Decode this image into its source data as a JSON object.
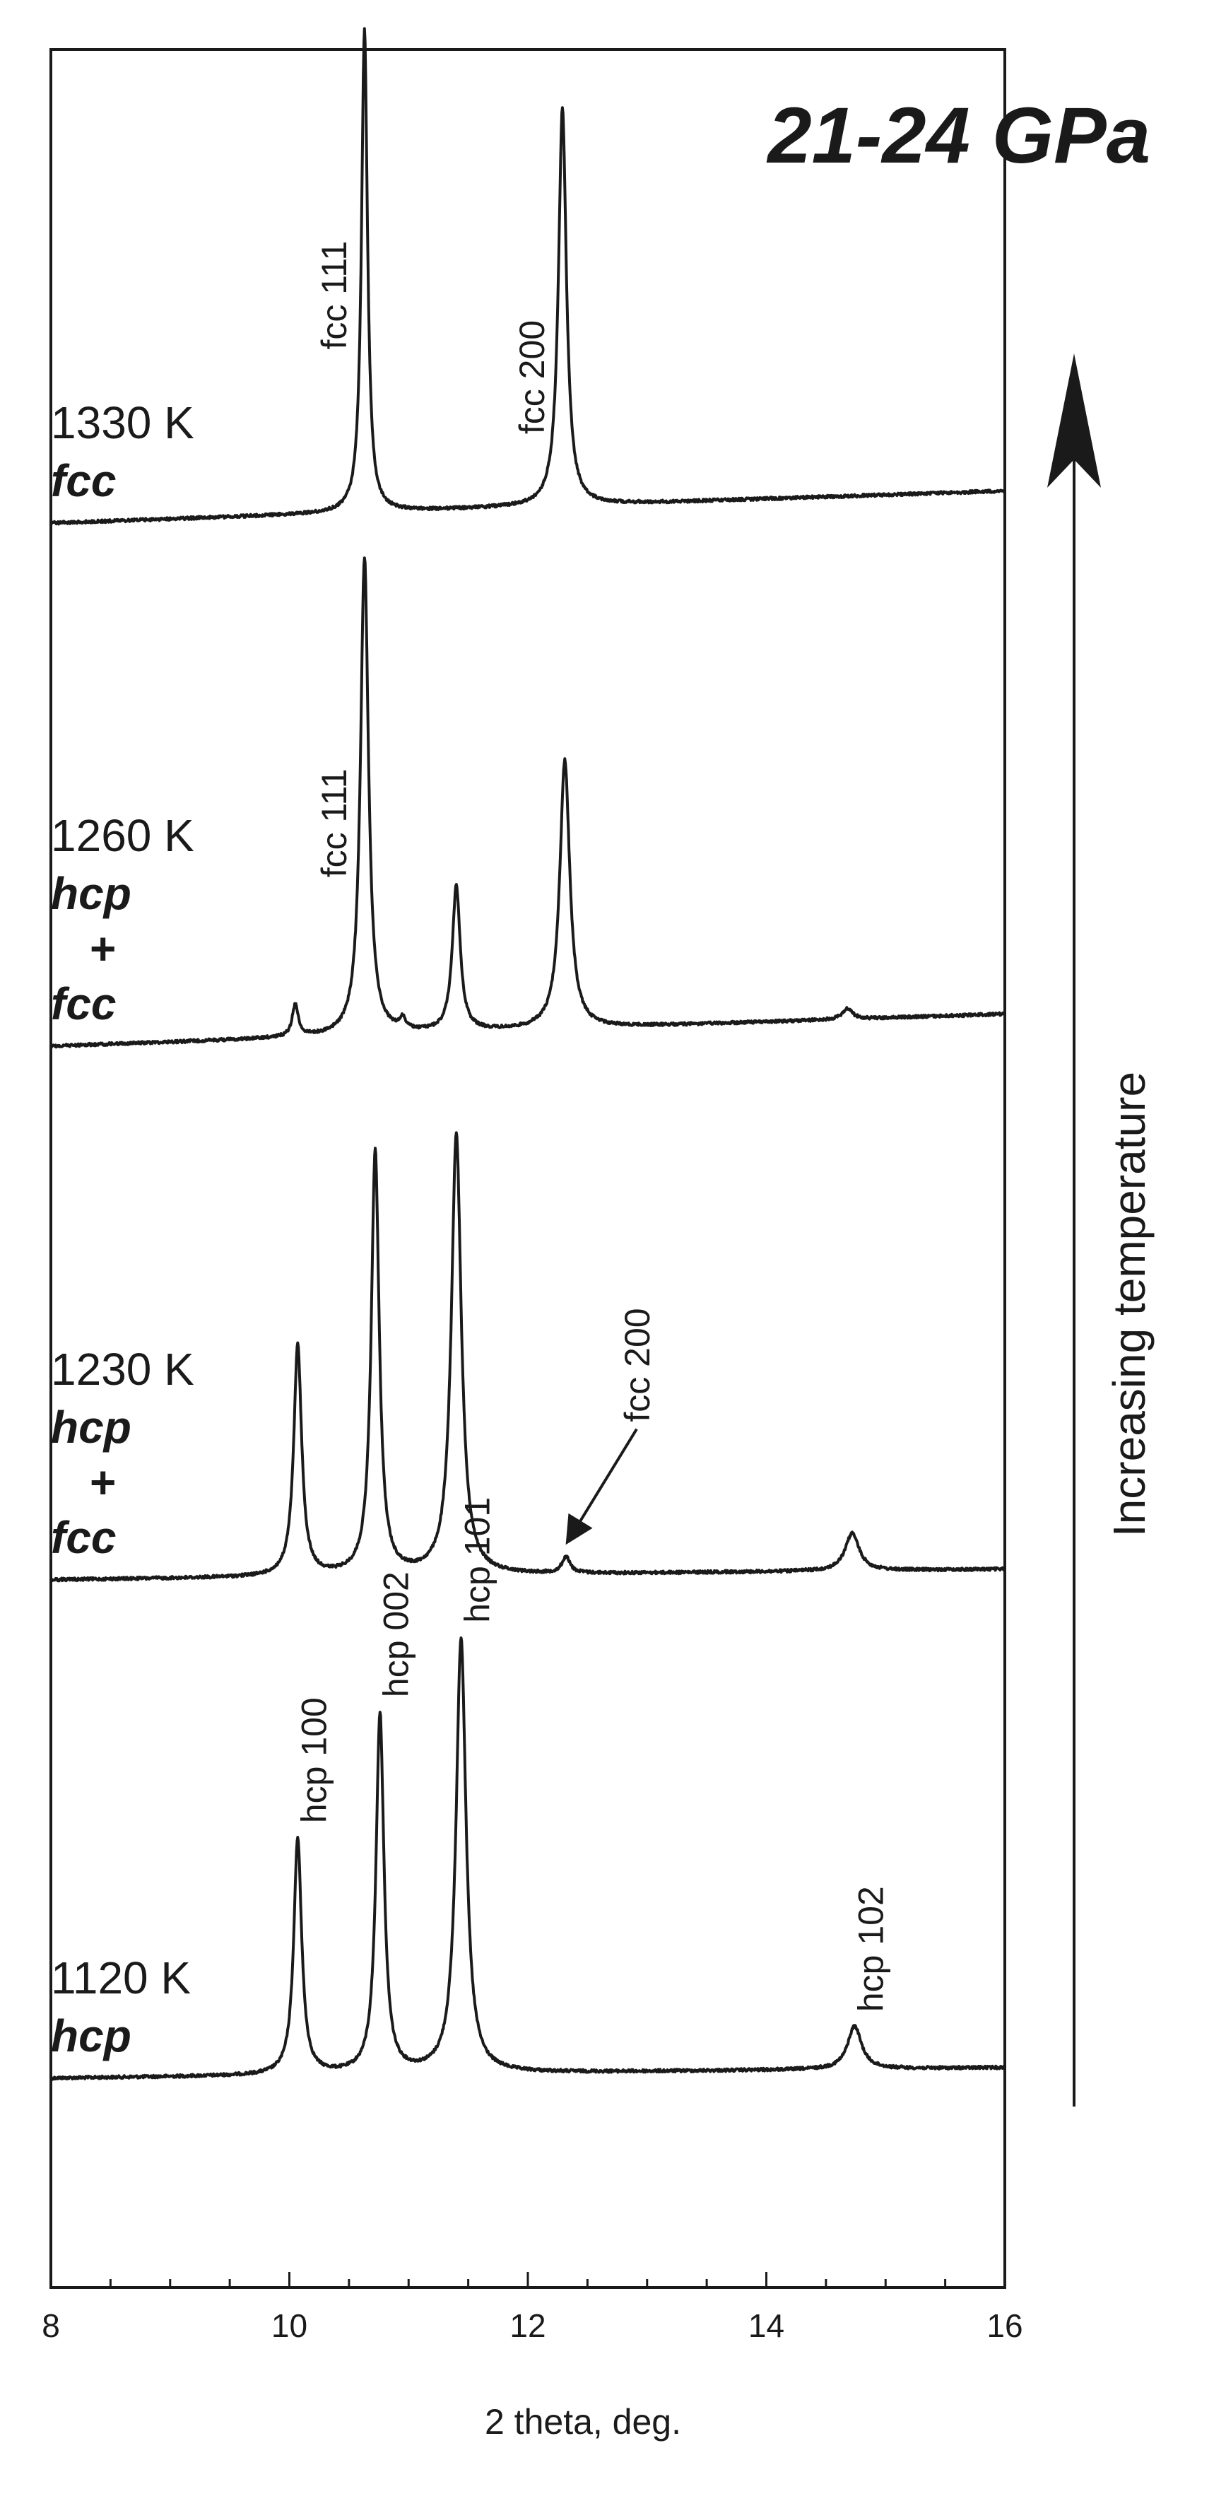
{
  "chart_data": {
    "type": "line",
    "title": "21-24 GPa",
    "xlabel": "2 theta, deg.",
    "ylabel": "",
    "xlim": [
      8,
      16
    ],
    "xticks": [
      8,
      10,
      12,
      14,
      16
    ],
    "grid": false,
    "trend_annotation": "Increasing temperature",
    "series": [
      {
        "temperature": "1120 K",
        "phase_lines": [
          "hcp"
        ],
        "baseline_left": 0.0,
        "baseline_right": 0.02,
        "peaks": [
          {
            "x": 10.07,
            "height": 0.44,
            "width": 0.04
          },
          {
            "x": 10.76,
            "height": 0.67,
            "width": 0.04
          },
          {
            "x": 11.44,
            "height": 0.81,
            "width": 0.05
          },
          {
            "x": 14.74,
            "height": 0.08,
            "width": 0.07
          }
        ],
        "peak_labels": [
          {
            "text": "hcp 100",
            "x": 10.07
          },
          {
            "text": "hcp 002",
            "x": 10.76
          },
          {
            "text": "hcp 101",
            "x": 11.44
          },
          {
            "text": "hcp 102",
            "x": 14.74
          }
        ]
      },
      {
        "temperature": "1230 K",
        "phase_lines": [
          "hcp",
          "+",
          "fcc"
        ],
        "baseline_left": 0.0,
        "baseline_right": 0.02,
        "peaks": [
          {
            "x": 10.07,
            "height": 0.43,
            "width": 0.04
          },
          {
            "x": 10.72,
            "height": 0.79,
            "width": 0.04
          },
          {
            "x": 11.4,
            "height": 0.82,
            "width": 0.05
          },
          {
            "x": 12.32,
            "height": 0.03,
            "width": 0.04
          },
          {
            "x": 14.72,
            "height": 0.07,
            "width": 0.07
          }
        ],
        "peak_labels": [
          {
            "text": "fcc 200",
            "x": 12.32,
            "arrow": true
          }
        ]
      },
      {
        "temperature": "1260 K",
        "phase_lines": [
          "hcp",
          "+",
          "fcc"
        ],
        "baseline_left": 0.0,
        "baseline_right": 0.06,
        "peaks": [
          {
            "x": 10.05,
            "height": 0.06,
            "width": 0.03
          },
          {
            "x": 10.63,
            "height": 0.89,
            "width": 0.04
          },
          {
            "x": 10.95,
            "height": 0.02,
            "width": 0.03
          },
          {
            "x": 11.4,
            "height": 0.27,
            "width": 0.04
          },
          {
            "x": 12.31,
            "height": 0.5,
            "width": 0.05
          },
          {
            "x": 14.68,
            "height": 0.02,
            "width": 0.05
          }
        ],
        "peak_labels": [
          {
            "text": "fcc 111",
            "x": 10.63
          }
        ]
      },
      {
        "temperature": "1330 K",
        "phase_lines": [
          "fcc"
        ],
        "baseline_left": 0.0,
        "baseline_right": 0.06,
        "peaks": [
          {
            "x": 10.63,
            "height": 0.9,
            "width": 0.03
          },
          {
            "x": 12.29,
            "height": 0.74,
            "width": 0.04
          }
        ],
        "peak_labels": [
          {
            "text": "fcc 111",
            "x": 10.63
          },
          {
            "text": "fcc 200",
            "x": 12.29
          }
        ]
      }
    ]
  }
}
